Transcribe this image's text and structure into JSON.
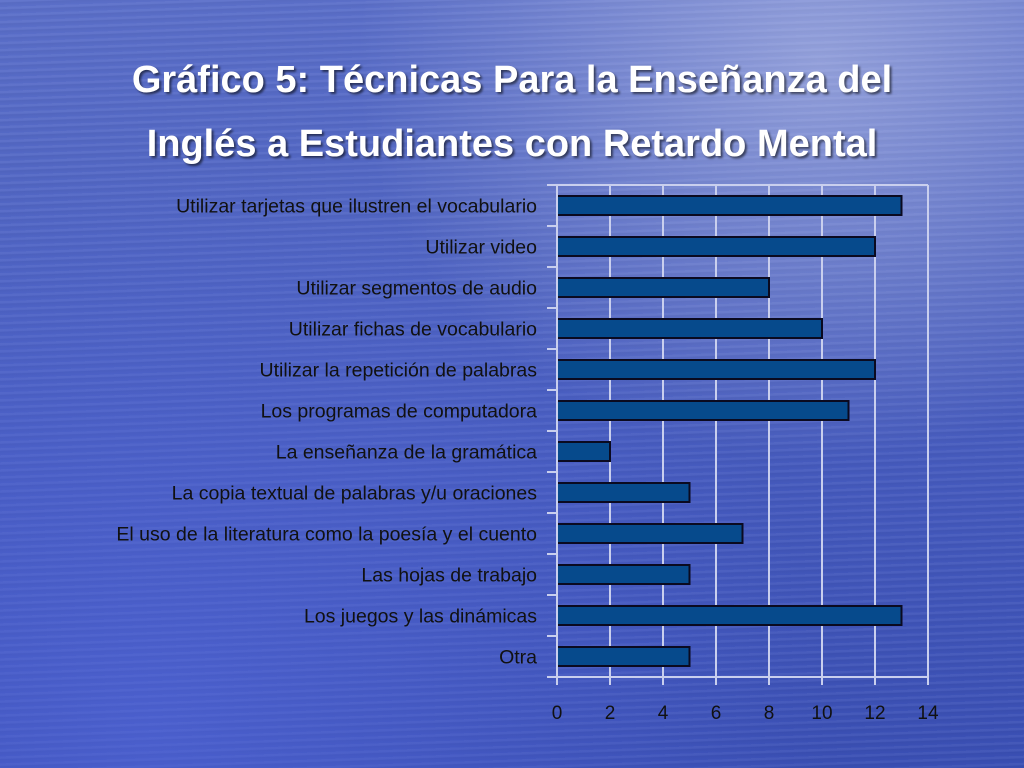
{
  "slide": {
    "title_line1": "Gráfico 5: Técnicas Para la Enseñanza del",
    "title_line2": "Inglés a Estudiantes con Retardo Mental"
  },
  "colors": {
    "bar_fill": "#064a8c",
    "bar_stroke": "#0a0a20",
    "axis": "#c9cfee",
    "label": "#111111"
  },
  "chart_data": {
    "type": "bar",
    "orientation": "horizontal",
    "categories": [
      "Utilizar tarjetas que ilustren el vocabulario",
      "Utilizar video",
      "Utilizar segmentos de audio",
      "Utilizar fichas de vocabulario",
      "Utilizar la repetición de palabras",
      "Los programas de computadora",
      "La enseñanza de la gramática",
      "La copia textual de palabras y/u oraciones",
      "El uso de la literatura como la poesía y el cuento",
      "Las hojas de trabajo",
      "Los juegos y las dinámicas",
      "Otra"
    ],
    "values": [
      13,
      12,
      8,
      10,
      12,
      11,
      2,
      5,
      7,
      5,
      13,
      5
    ],
    "xlim": [
      0,
      14
    ],
    "xticks": [
      "0",
      "2",
      "4",
      "6",
      "8",
      "10",
      "12",
      "14"
    ],
    "grid": true
  }
}
